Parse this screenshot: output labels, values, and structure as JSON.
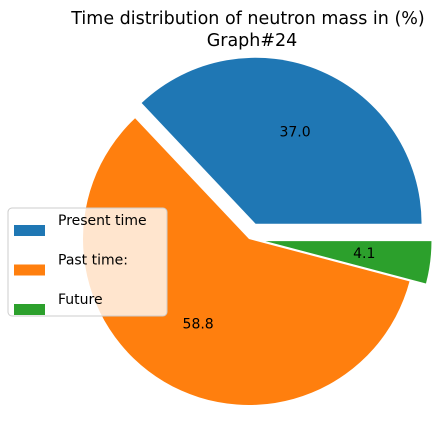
{
  "chart_data": {
    "type": "pie",
    "title": "Time distribution of neutron mass in (%)",
    "subtitle": "Graph#24",
    "slices": [
      {
        "label": "Present time",
        "value": 37.0,
        "display": "37.0",
        "color": "#1f77b4",
        "exploded": true
      },
      {
        "label": "Past time:",
        "value": 58.8,
        "display": "58.8",
        "color": "#ff7f0e",
        "exploded": false
      },
      {
        "label": "Future",
        "value": 4.1,
        "display": "4.1",
        "color": "#2ca02c",
        "exploded": true
      }
    ],
    "legend_position": "center-left"
  }
}
